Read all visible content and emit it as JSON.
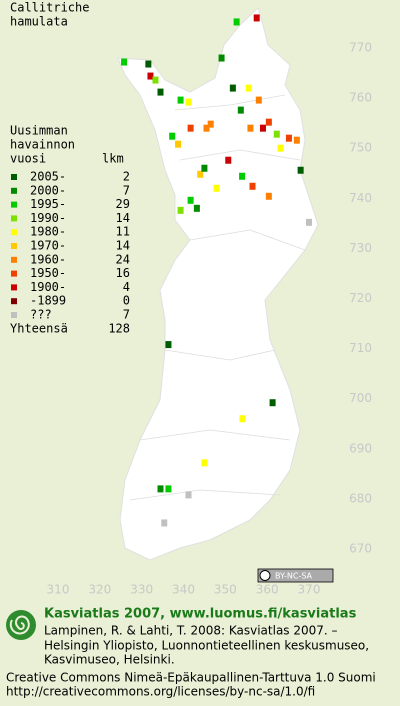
{
  "map": {
    "title": [
      "Callitriche",
      "hamulata"
    ],
    "legend_heading": [
      "Uusimman",
      "havainnon"
    ],
    "legend_column_period": "vuosi",
    "legend_column_count": "lkm",
    "legend": [
      {
        "label": "2005-",
        "count": 2,
        "color": "#005c00"
      },
      {
        "label": "2000-",
        "count": 7,
        "color": "#008a00"
      },
      {
        "label": "1995-",
        "count": 29,
        "color": "#00cc00"
      },
      {
        "label": "1990-",
        "count": 14,
        "color": "#7ce000"
      },
      {
        "label": "1980-",
        "count": 11,
        "color": "#ffff00"
      },
      {
        "label": "1970-",
        "count": 14,
        "color": "#ffc800"
      },
      {
        "label": "1960-",
        "count": 24,
        "color": "#ff8000"
      },
      {
        "label": "1950-",
        "count": 16,
        "color": "#ee4000"
      },
      {
        "label": "1900-",
        "count": 4,
        "color": "#cc0000"
      },
      {
        "label": "-1899",
        "count": 0,
        "color": "#800000"
      },
      {
        "label": "???",
        "count": 7,
        "color": "#c0c0c0"
      }
    ],
    "total_label": "Yhteensä",
    "total": 128,
    "xticks": [
      310,
      320,
      330,
      340,
      350,
      360,
      370
    ],
    "yticks": [
      770,
      760,
      750,
      740,
      730,
      720,
      710,
      700,
      690,
      680,
      670
    ],
    "squares": [
      {
        "e": 357.5,
        "n": 776,
        "period": 8
      },
      {
        "e": 352.7,
        "n": 775.2,
        "period": 2
      },
      {
        "e": 349.1,
        "n": 768,
        "period": 1
      },
      {
        "e": 325.8,
        "n": 767.2,
        "period": 2
      },
      {
        "e": 331.6,
        "n": 766.8,
        "period": 0
      },
      {
        "e": 332.1,
        "n": 764.4,
        "period": 8
      },
      {
        "e": 333.3,
        "n": 763.6,
        "period": 3
      },
      {
        "e": 339.3,
        "n": 759.6,
        "period": 2
      },
      {
        "e": 341.2,
        "n": 759.2,
        "period": 4
      },
      {
        "e": 334.5,
        "n": 761.2,
        "period": 0
      },
      {
        "e": 355.6,
        "n": 762,
        "period": 4
      },
      {
        "e": 351.8,
        "n": 762,
        "period": 0
      },
      {
        "e": 358,
        "n": 759.6,
        "period": 6
      },
      {
        "e": 359,
        "n": 754,
        "period": 8
      },
      {
        "e": 360.4,
        "n": 755.2,
        "period": 7
      },
      {
        "e": 353.7,
        "n": 757.6,
        "period": 1
      },
      {
        "e": 345.5,
        "n": 754,
        "period": 6
      },
      {
        "e": 346.5,
        "n": 754.8,
        "period": 6
      },
      {
        "e": 341.7,
        "n": 754,
        "period": 7
      },
      {
        "e": 337.3,
        "n": 752.4,
        "period": 2
      },
      {
        "e": 338.7,
        "n": 750.8,
        "period": 5
      },
      {
        "e": 344,
        "n": 744.8,
        "period": 5
      },
      {
        "e": 347.9,
        "n": 742,
        "period": 4
      },
      {
        "e": 345,
        "n": 746,
        "period": 1
      },
      {
        "e": 341.7,
        "n": 739.6,
        "period": 2
      },
      {
        "e": 339.3,
        "n": 737.6,
        "period": 3
      },
      {
        "e": 343.2,
        "n": 738,
        "period": 1
      },
      {
        "e": 356.5,
        "n": 742.4,
        "period": 7
      },
      {
        "e": 360.4,
        "n": 740.4,
        "period": 6
      },
      {
        "e": 365.2,
        "n": 752,
        "period": 7
      },
      {
        "e": 367.1,
        "n": 751.6,
        "period": 6
      },
      {
        "e": 363.2,
        "n": 750,
        "period": 4
      },
      {
        "e": 368,
        "n": 745.6,
        "period": 0
      },
      {
        "e": 370,
        "n": 735.2,
        "period": 10
      },
      {
        "e": 336.4,
        "n": 710.8,
        "period": 0
      },
      {
        "e": 361.3,
        "n": 699.2,
        "period": 0
      },
      {
        "e": 354.1,
        "n": 696,
        "period": 4
      },
      {
        "e": 345,
        "n": 687.2,
        "period": 4
      },
      {
        "e": 334.5,
        "n": 682,
        "period": 1
      },
      {
        "e": 341.2,
        "n": 680.8,
        "period": 10
      },
      {
        "e": 335.4,
        "n": 675.2,
        "period": 10
      },
      {
        "e": 336.4,
        "n": 682,
        "period": 2
      },
      {
        "e": 362.3,
        "n": 752.8,
        "period": 3
      },
      {
        "e": 356,
        "n": 754,
        "period": 6
      },
      {
        "e": 350.7,
        "n": 747.6,
        "period": 8
      },
      {
        "e": 354,
        "n": 744.4,
        "period": 2
      }
    ],
    "license_badge": "BY-NC-SA"
  },
  "footer": {
    "heading": "Kasviatlas 2007, www.luomus.fi/kasviatlas",
    "citation": [
      "Lampinen, R. & Lahti, T. 2008: Kasviatlas 2007. –",
      "Helsingin Yliopisto, Luonnontieteellinen keskusmuseo,",
      "Kasvimuseo, Helsinki."
    ],
    "license": [
      "Creative Commons Nimeä-Epäkaupallinen-Tarttuva 1.0 Suomi",
      "http://creativecommons.org/licenses/by-nc-sa/1.0/fi"
    ]
  }
}
